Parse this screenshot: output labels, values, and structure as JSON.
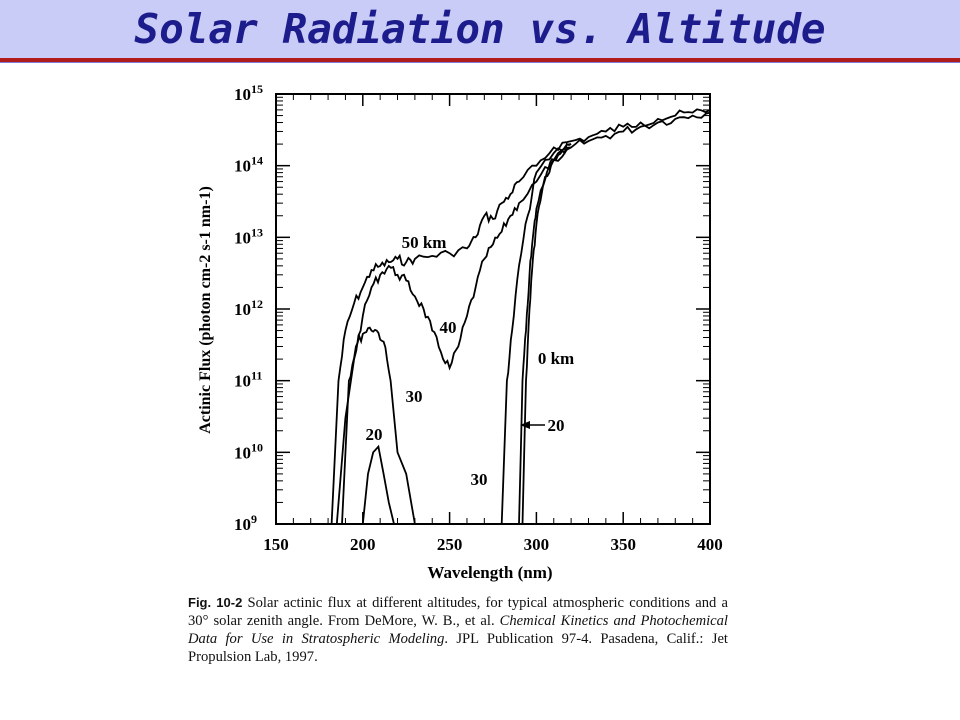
{
  "slide": {
    "title": "Solar Radiation vs. Altitude",
    "colors": {
      "title_bg": "#c9ccf7",
      "title_text": "#1c1c8c",
      "rule": "#b01c1c"
    }
  },
  "caption": {
    "label": "Fig. 10-2",
    "line1": " Solar actinic flux at different altitudes, for typical atmospheric conditions and a 30° solar zenith angle. From DeMore, W. B., et al. ",
    "italic": "Chemical Kinetics and Photochemical Data for Use in Stratospheric Modeling",
    "line2": ". JPL Publication 97-4. Pasadena, Calif.: Jet Propulsion Lab, 1997."
  },
  "chart_data": {
    "type": "line",
    "xlabel": "Wavelength (nm)",
    "ylabel": "Actinic Flux (photon cm-2 s-1 nm-1)",
    "xlim": [
      150,
      400
    ],
    "ylim": [
      1000000000.0,
      1000000000000000.0
    ],
    "yscale": "log",
    "x_ticks": [
      "150",
      "200",
      "250",
      "300",
      "350",
      "400"
    ],
    "y_ticks": [
      {
        "base": "10",
        "exp": "9"
      },
      {
        "base": "10",
        "exp": "10"
      },
      {
        "base": "10",
        "exp": "11"
      },
      {
        "base": "10",
        "exp": "12"
      },
      {
        "base": "10",
        "exp": "13"
      },
      {
        "base": "10",
        "exp": "14"
      },
      {
        "base": "10",
        "exp": "15"
      }
    ],
    "series": [
      {
        "name": "50 km",
        "x": [
          182,
          186,
          190,
          195,
          200,
          205,
          210,
          215,
          220,
          225,
          230,
          240,
          250,
          260,
          265,
          270,
          275,
          280,
          285,
          290,
          300,
          310,
          320,
          330,
          340,
          350,
          360,
          370,
          380,
          390,
          400
        ],
        "y": [
          1000000000.0,
          100000000000.0,
          500000000000.0,
          1200000000000.0,
          2000000000000.0,
          3500000000000.0,
          4000000000000.0,
          4500000000000.0,
          5000000000000.0,
          4500000000000.0,
          5000000000000.0,
          5500000000000.0,
          6000000000000.0,
          7000000000000.0,
          10000000000000.0,
          20000000000000.0,
          18000000000000.0,
          30000000000000.0,
          40000000000000.0,
          60000000000000.0,
          100000000000000.0,
          180000000000000.0,
          220000000000000.0,
          250000000000000.0,
          300000000000000.0,
          350000000000000.0,
          400000000000000.0,
          450000000000000.0,
          500000000000000.0,
          550000000000000.0,
          600000000000000.0
        ]
      },
      {
        "name": "40",
        "x": [
          185,
          190,
          195,
          200,
          205,
          210,
          215,
          220,
          225,
          230,
          235,
          240,
          245,
          250,
          255,
          260,
          265,
          270,
          275,
          280,
          285,
          290,
          300,
          310,
          320,
          330,
          340,
          350,
          360,
          370,
          380,
          390,
          400
        ],
        "y": [
          1000000000.0,
          30000000000.0,
          200000000000.0,
          800000000000.0,
          2000000000000.0,
          3000000000000.0,
          4000000000000.0,
          3000000000000.0,
          2500000000000.0,
          1500000000000.0,
          1000000000000.0,
          500000000000.0,
          250000000000.0,
          150000000000.0,
          300000000000.0,
          800000000000.0,
          2000000000000.0,
          5000000000000.0,
          8000000000000.0,
          12000000000000.0,
          20000000000000.0,
          30000000000000.0,
          60000000000000.0,
          120000000000000.0,
          180000000000000.0,
          220000000000000.0,
          260000000000000.0,
          300000000000000.0,
          350000000000000.0,
          400000000000000.0,
          450000000000000.0,
          500000000000000.0,
          550000000000000.0
        ]
      },
      {
        "name": "30",
        "x": [
          188,
          192,
          196,
          200,
          204,
          208,
          212,
          216,
          220,
          225,
          230
        ],
        "y": [
          1000000000.0,
          100000000000.0,
          300000000000.0,
          450000000000.0,
          550000000000.0,
          500000000000.0,
          350000000000.0,
          100000000000.0,
          10000000000.0,
          5000000000.0,
          1000000000.0
        ]
      },
      {
        "name": "20",
        "x": [
          200,
          203,
          206,
          209,
          212,
          215,
          218
        ],
        "y": [
          1000000000.0,
          5000000000.0,
          10000000000.0,
          12000000000.0,
          5000000000.0,
          2000000000.0,
          1000000000.0
        ]
      },
      {
        "name": "30",
        "x": [
          280,
          283,
          286,
          290,
          295,
          300,
          310,
          320
        ],
        "y": [
          1000000000.0,
          100000000000.0,
          500000000000.0,
          4000000000000.0,
          20000000000000.0,
          80000000000000.0,
          150000000000000.0,
          200000000000000.0
        ]
      },
      {
        "name": "0 km",
        "x": [
          292,
          293,
          294,
          296,
          298,
          300,
          303,
          306,
          310,
          315,
          320
        ],
        "y": [
          1000000000.0,
          10000000000.0,
          100000000000.0,
          1000000000000.0,
          5000000000000.0,
          15000000000000.0,
          40000000000000.0,
          80000000000000.0,
          120000000000000.0,
          160000000000000.0,
          200000000000000.0
        ]
      },
      {
        "name": "20",
        "x": [
          290,
          291,
          292,
          294,
          296,
          298,
          300,
          305,
          310,
          320
        ],
        "y": [
          1000000000.0,
          10000000000.0,
          100000000000.0,
          500000000000.0,
          3000000000000.0,
          10000000000000.0,
          25000000000000.0,
          70000000000000.0,
          120000000000000.0,
          180000000000000.0
        ]
      }
    ],
    "annotations": [
      "50 km",
      "40",
      "30",
      "20",
      "0 km",
      "20",
      "30"
    ],
    "grid": false,
    "legend": "none"
  }
}
